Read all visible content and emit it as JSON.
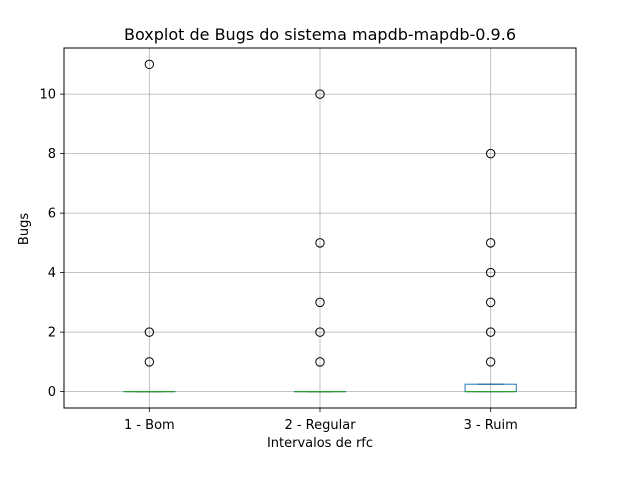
{
  "chart_data": {
    "type": "boxplot",
    "title": "Boxplot de Bugs do sistema mapdb-mapdb-0.9.6",
    "xlabel": "Intervalos de rfc",
    "ylabel": "Bugs",
    "ylim": [
      -0.55,
      11.55
    ],
    "yticks": [
      0,
      2,
      4,
      6,
      8,
      10
    ],
    "ytick_labels": [
      "0",
      "2",
      "4",
      "6",
      "8",
      "10"
    ],
    "grid": true,
    "categories": [
      "1 - Bom",
      "2 - Regular",
      "3 - Ruim"
    ],
    "boxes": [
      {
        "category": "1 - Bom",
        "q1": 0,
        "median": 0,
        "q3": 0,
        "whisker_low": 0,
        "whisker_high": 0,
        "outliers": [
          1,
          2,
          11
        ]
      },
      {
        "category": "2 - Regular",
        "q1": 0,
        "median": 0,
        "q3": 0,
        "whisker_low": 0,
        "whisker_high": 0,
        "outliers": [
          1,
          2,
          3,
          5,
          10
        ]
      },
      {
        "category": "3 - Ruim",
        "q1": 0,
        "median": 0,
        "q3": 0.25,
        "whisker_low": 0,
        "whisker_high": 0.25,
        "outliers": [
          1,
          2,
          3,
          4,
          5,
          8
        ]
      }
    ],
    "colors": {
      "box": "#1f77b4",
      "median": "#2ca02c",
      "whisker": "#000000",
      "outlier": "#000000",
      "grid": "#b0b0b0"
    }
  }
}
